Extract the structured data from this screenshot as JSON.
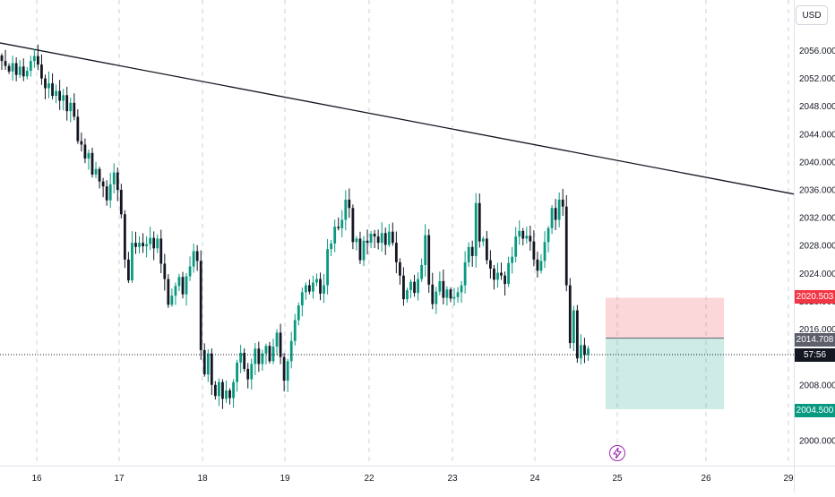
{
  "currency_label": "USD",
  "icon_names": {
    "event": "lightning-bolt-icon"
  },
  "colors": {
    "up": "#089981",
    "down": "#131722",
    "stop_zone": "#f23645",
    "target_zone": "#089981",
    "event": "#9c27b0"
  },
  "price_axis": {
    "ticks": [
      "2000.000",
      "2004.000",
      "2008.000",
      "2012.000",
      "2016.000",
      "2020.000",
      "2024.000",
      "2028.000",
      "2032.000",
      "2036.000",
      "2040.000",
      "2044.000",
      "2048.000",
      "2052.000",
      "2056.000"
    ]
  },
  "time_axis": {
    "labels": [
      "16",
      "17",
      "18",
      "19",
      "22",
      "23",
      "24",
      "25",
      "26",
      "29"
    ]
  },
  "chart_data": {
    "type": "candlestick",
    "y_range": [
      1996.5,
      2060.5
    ],
    "trendline": {
      "start_price": 2057.1,
      "end_price": 2035.4
    },
    "position": {
      "stop": "2020.503",
      "entry": "2014.708",
      "target": "2004.500",
      "countdown": "57:56"
    },
    "closes": [
      2054.5,
      2053.8,
      2053.0,
      2054.2,
      2052.5,
      2053.7,
      2052.3,
      2053.1,
      2054.5,
      2055.2,
      2054.0,
      2052.0,
      2050.6,
      2051.3,
      2049.5,
      2050.2,
      2048.8,
      2049.6,
      2047.3,
      2048.5,
      2046.5,
      2043.0,
      2042.5,
      2040.5,
      2041.3,
      2038.2,
      2039.0,
      2037.2,
      2036.5,
      2034.5,
      2036.8,
      2038.5,
      2036.0,
      2032.5,
      2026.0,
      2023.0,
      2028.4,
      2027.8,
      2028.4,
      2027.9,
      2028.2,
      2029.1,
      2027.6,
      2029.0,
      2025.4,
      2023.2,
      2019.5,
      2020.8,
      2022.2,
      2023.5,
      2021.0,
      2023.6,
      2025.0,
      2027.2,
      2025.8,
      2013.0,
      2009.5,
      2012.5,
      2008.0,
      2006.4,
      2008.4,
      2006.0,
      2007.2,
      2006.1,
      2008.4,
      2011.2,
      2012.6,
      2010.3,
      2008.8,
      2011.0,
      2013.2,
      2011.0,
      2012.5,
      2013.6,
      2011.4,
      2013.5,
      2015.5,
      2012.0,
      2008.6,
      2011.4,
      2014.3,
      2017.3,
      2019.4,
      2021.3,
      2022.3,
      2021.4,
      2022.7,
      2023.2,
      2021.1,
      2022.3,
      2027.5,
      2028.3,
      2030.7,
      2030.5,
      2031.7,
      2034.6,
      2033.4,
      2028.5,
      2029.0,
      2025.9,
      2028.7,
      2028.4,
      2029.7,
      2029.3,
      2028.4,
      2029.8,
      2028.1,
      2030.0,
      2028.4,
      2025.6,
      2023.7,
      2020.3,
      2021.6,
      2022.8,
      2021.2,
      2023.2,
      2025.2,
      2029.5,
      2022.4,
      2019.6,
      2021.4,
      2022.9,
      2020.5,
      2021.7,
      2020.4,
      2020.6,
      2021.3,
      2022.3,
      2025.6,
      2027.8,
      2026.5,
      2034.1,
      2028.6,
      2029.0,
      2025.9,
      2024.7,
      2023.1,
      2024.1,
      2023.7,
      2022.5,
      2025.5,
      2026.4,
      2029.3,
      2030.1,
      2029.0,
      2029.4,
      2028.6,
      2026.0,
      2024.4,
      2025.8,
      2028.5,
      2030.5,
      2033.4,
      2031.7,
      2034.6,
      2033.6,
      2022.3,
      2014.0,
      2018.7,
      2011.8,
      2013.7,
      2012.3,
      2013.2
    ]
  }
}
